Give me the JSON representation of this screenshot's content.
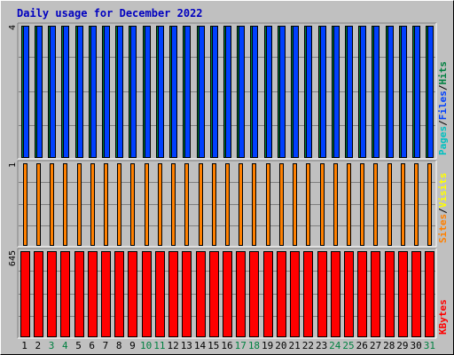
{
  "title": "Daily usage for December 2022",
  "colors": {
    "background": "#c0c0c0",
    "title": "#0000c0",
    "hits": "#008040",
    "files": "#0040ff",
    "pages": "#00c0c0",
    "visits": "#ffff00",
    "sites": "#ff8000",
    "kbytes": "#ff0000",
    "weekday_label": "#000000",
    "weekend_label": "#008040"
  },
  "chart_data": [
    {
      "type": "bar",
      "panel": "top",
      "ymax_label": "4",
      "ylim": [
        0,
        4
      ],
      "legend": [
        "Pages",
        "/",
        "Files",
        "/",
        "Hits"
      ],
      "categories": [
        "1",
        "2",
        "3",
        "4",
        "5",
        "6",
        "7",
        "8",
        "9",
        "10",
        "11",
        "12",
        "13",
        "14",
        "15",
        "16",
        "17",
        "18",
        "19",
        "20",
        "21",
        "22",
        "23",
        "24",
        "25",
        "26",
        "27",
        "28",
        "29",
        "30",
        "31"
      ],
      "series": [
        {
          "name": "Hits",
          "values": [
            4,
            4,
            4,
            4,
            4,
            4,
            4,
            4,
            4,
            4,
            4,
            4,
            4,
            4,
            4,
            4,
            4,
            4,
            4,
            4,
            4,
            4,
            4,
            4,
            4,
            4,
            4,
            4,
            4,
            4,
            4
          ]
        },
        {
          "name": "Files",
          "values": [
            4,
            4,
            4,
            4,
            4,
            4,
            4,
            4,
            4,
            4,
            4,
            4,
            4,
            4,
            4,
            4,
            4,
            4,
            4,
            4,
            4,
            4,
            4,
            4,
            4,
            4,
            4,
            4,
            4,
            4,
            4
          ]
        },
        {
          "name": "Pages",
          "values": [
            0,
            0,
            0,
            0,
            0,
            0,
            0,
            0,
            0,
            0,
            0,
            0,
            0,
            0,
            0,
            0,
            0,
            0,
            0,
            0,
            0,
            0,
            0,
            0,
            0,
            0,
            0,
            0,
            0,
            0,
            0
          ]
        }
      ]
    },
    {
      "type": "bar",
      "panel": "middle",
      "ymax_label": "1",
      "ylim": [
        0,
        1
      ],
      "legend": [
        "Sites",
        "/",
        "Visits"
      ],
      "categories": [
        "1",
        "2",
        "3",
        "4",
        "5",
        "6",
        "7",
        "8",
        "9",
        "10",
        "11",
        "12",
        "13",
        "14",
        "15",
        "16",
        "17",
        "18",
        "19",
        "20",
        "21",
        "22",
        "23",
        "24",
        "25",
        "26",
        "27",
        "28",
        "29",
        "30",
        "31"
      ],
      "series": [
        {
          "name": "Visits",
          "values": [
            0,
            0,
            0,
            0,
            0,
            0,
            0,
            0,
            0,
            0,
            0,
            0,
            0,
            0,
            0,
            0,
            0,
            0,
            0,
            0,
            0,
            0,
            0,
            0,
            0,
            0,
            0,
            0,
            0,
            0,
            0
          ]
        },
        {
          "name": "Sites",
          "values": [
            1,
            1,
            1,
            1,
            1,
            1,
            1,
            1,
            1,
            1,
            1,
            1,
            1,
            1,
            1,
            1,
            1,
            1,
            1,
            1,
            1,
            1,
            1,
            1,
            1,
            1,
            1,
            1,
            1,
            1,
            1
          ]
        }
      ]
    },
    {
      "type": "bar",
      "panel": "bottom",
      "ymax_label": "645",
      "ylim": [
        0,
        645
      ],
      "legend": [
        "KBytes"
      ],
      "categories": [
        "1",
        "2",
        "3",
        "4",
        "5",
        "6",
        "7",
        "8",
        "9",
        "10",
        "11",
        "12",
        "13",
        "14",
        "15",
        "16",
        "17",
        "18",
        "19",
        "20",
        "21",
        "22",
        "23",
        "24",
        "25",
        "26",
        "27",
        "28",
        "29",
        "30",
        "31"
      ],
      "weekend_days": [
        3,
        4,
        10,
        11,
        17,
        18,
        24,
        25,
        31
      ],
      "series": [
        {
          "name": "KBytes",
          "values": [
            645,
            645,
            645,
            645,
            645,
            645,
            645,
            645,
            645,
            645,
            645,
            645,
            645,
            645,
            645,
            645,
            645,
            645,
            645,
            645,
            645,
            645,
            645,
            645,
            645,
            645,
            645,
            645,
            645,
            645,
            645
          ]
        }
      ]
    }
  ]
}
